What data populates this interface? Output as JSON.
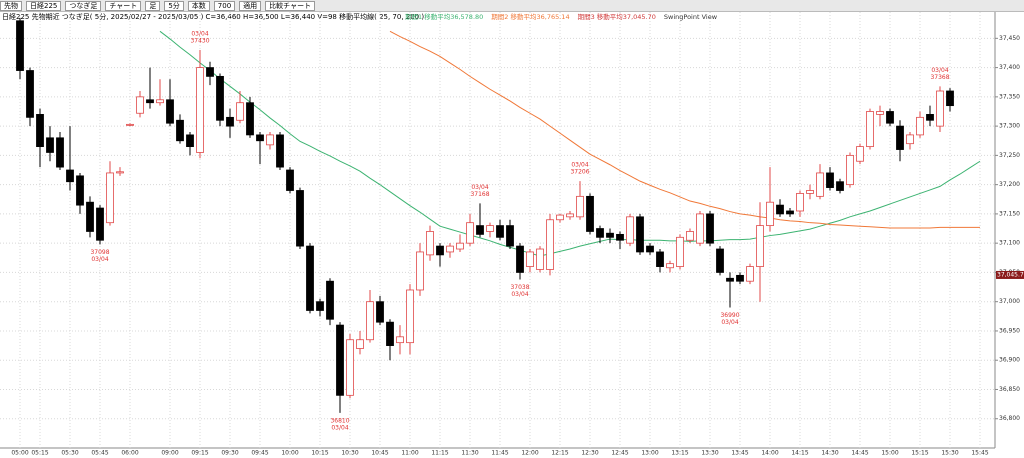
{
  "toolbar": [
    "先物",
    "日経225",
    "つなぎ足",
    "チャート",
    "足",
    "5分",
    "本数",
    "700",
    "適用",
    "比較チャート"
  ],
  "chart_data": {
    "type": "candlestick",
    "subtitle": "日経225 先物期近 つなぎ足( 5分, 2025/02/27 - 2025/03/05 ) C=36,460 H=36,500 L=36,440 V=98 移動平均線( 25, 70, 200 )",
    "indicator": "SwingPoint View",
    "categories": [
      "05:00",
      null,
      "05:15",
      null,
      null,
      "05:30",
      null,
      null,
      "05:45",
      null,
      null,
      "06:00",
      null,
      null,
      null,
      "09:00",
      null,
      null,
      "09:15",
      null,
      null,
      "09:30",
      null,
      null,
      "09:45",
      null,
      null,
      "10:00",
      null,
      null,
      "10:15",
      null,
      null,
      "10:30",
      null,
      null,
      "10:45",
      null,
      null,
      "11:00",
      null,
      null,
      "11:15",
      null,
      null,
      "11:30",
      null,
      null,
      "11:45",
      null,
      null,
      "12:00",
      null,
      null,
      "12:15",
      null,
      null,
      "12:30",
      null,
      null,
      "12:45",
      null,
      null,
      "13:00",
      null,
      null,
      "13:15",
      null,
      null,
      "13:30",
      null,
      null,
      "13:45",
      null,
      null,
      "14:00",
      null,
      null,
      "14:15",
      null,
      null,
      "14:30",
      null,
      null,
      "14:45",
      null,
      null,
      "15:00",
      null,
      null,
      "15:15",
      null,
      null,
      "15:30",
      null,
      null,
      "15:45"
    ],
    "open": [
      37480,
      37395,
      37320,
      37280,
      37280,
      37225,
      37215,
      37170,
      37160,
      37135,
      37220,
      37303,
      37322,
      37345,
      37340,
      37345,
      37310,
      37285,
      37255,
      37400,
      37385,
      37315,
      37310,
      37340,
      37285,
      37268,
      37285,
      37225,
      37190,
      37095,
      37000,
      37035,
      36960,
      36840,
      36920,
      36935,
      37000,
      36965,
      36930,
      36930,
      37020,
      37080,
      37095,
      37085,
      37090,
      37100,
      37130,
      37120,
      37130,
      37130,
      37095,
      37060,
      37055,
      37055,
      37140,
      37145,
      37145,
      37180,
      37125,
      37117,
      37115,
      37100,
      37145,
      37095,
      37085,
      37058,
      37060,
      37105,
      37100,
      37150,
      37090,
      37040,
      37045,
      37035,
      37060,
      37130,
      37165,
      37155,
      37155,
      37185,
      37180,
      37220,
      37205,
      37200,
      37240,
      37265,
      37320,
      37325,
      37300,
      37270,
      37285,
      37320,
      37300,
      37360,
      null,
      null,
      null
    ],
    "high": [
      37485,
      37400,
      37330,
      37300,
      37290,
      37300,
      37220,
      37180,
      37165,
      37240,
      37230,
      37305,
      37360,
      37400,
      37380,
      37380,
      37320,
      37290,
      37430,
      37410,
      37390,
      37330,
      37360,
      37350,
      37290,
      37290,
      37290,
      37230,
      37195,
      37100,
      37005,
      37040,
      36965,
      36945,
      36950,
      37020,
      37010,
      36970,
      36960,
      37030,
      37100,
      37130,
      37100,
      37100,
      37115,
      37150,
      37168,
      37135,
      37140,
      37140,
      37100,
      37090,
      37095,
      37150,
      37150,
      37155,
      37206,
      37185,
      37130,
      37125,
      37120,
      37150,
      37150,
      37100,
      37090,
      37070,
      37115,
      37125,
      37155,
      37155,
      37095,
      37050,
      37050,
      37065,
      37170,
      37230,
      37175,
      37160,
      37190,
      37200,
      37235,
      37230,
      37210,
      37255,
      37270,
      37330,
      37335,
      37330,
      37310,
      37290,
      37325,
      37335,
      37368,
      37365,
      null,
      null,
      null
    ],
    "low": [
      37380,
      37300,
      37230,
      37240,
      37225,
      37190,
      37150,
      37110,
      37098,
      37130,
      37215,
      37300,
      37315,
      37330,
      37335,
      37300,
      37270,
      37250,
      37245,
      37370,
      37300,
      37280,
      37305,
      37280,
      37235,
      37260,
      37225,
      37185,
      37090,
      36980,
      36975,
      36960,
      36810,
      36835,
      36910,
      36930,
      36960,
      36900,
      36910,
      36910,
      37010,
      37070,
      37060,
      37075,
      37085,
      37095,
      37110,
      37110,
      37105,
      37090,
      37038,
      37050,
      37050,
      37045,
      37135,
      37140,
      37140,
      37115,
      37100,
      37100,
      37090,
      37095,
      37080,
      37080,
      37050,
      37050,
      37055,
      37100,
      37095,
      37095,
      37045,
      36990,
      37030,
      37030,
      37000,
      37120,
      37145,
      37145,
      37145,
      37175,
      37175,
      37190,
      37185,
      37195,
      37235,
      37260,
      37300,
      37300,
      37240,
      37260,
      37280,
      37300,
      37290,
      37325,
      null,
      null,
      null
    ],
    "close": [
      37395,
      37315,
      37265,
      37255,
      37230,
      37205,
      37165,
      37120,
      37105,
      37220,
      37222,
      37303,
      37350,
      37340,
      37345,
      37305,
      37275,
      37265,
      37400,
      37385,
      37310,
      37300,
      37340,
      37285,
      37275,
      37285,
      37230,
      37190,
      37095,
      36985,
      36985,
      36970,
      36840,
      36935,
      36935,
      37000,
      36965,
      36925,
      36940,
      37020,
      37085,
      37120,
      37080,
      37095,
      37100,
      37135,
      37115,
      37130,
      37110,
      37095,
      37050,
      37085,
      37090,
      37140,
      37148,
      37150,
      37180,
      37120,
      37110,
      37110,
      37105,
      37145,
      37085,
      37085,
      37060,
      37065,
      37110,
      37120,
      37150,
      37100,
      37050,
      37035,
      37035,
      37060,
      37130,
      37170,
      37150,
      37150,
      37185,
      37190,
      37220,
      37195,
      37190,
      37250,
      37265,
      37325,
      37325,
      37305,
      37260,
      37285,
      37315,
      37310,
      37360,
      37335,
      null,
      null,
      null
    ],
    "up_color": "#e04848",
    "down_color": "#000000",
    "series": [
      {
        "name": "期間1 移動平均36,578.80",
        "color": "#3cb371",
        "values": [
          null,
          null,
          null,
          null,
          null,
          null,
          null,
          null,
          null,
          null,
          null,
          null,
          null,
          null,
          37462,
          37449,
          37435,
          37422,
          37408,
          37395,
          37381,
          37368,
          37355,
          37341,
          37328,
          37314,
          37301,
          37287,
          37274,
          37266,
          37257,
          37249,
          37240,
          37232,
          37223,
          37211,
          37200,
          37188,
          37176,
          37164,
          37153,
          37141,
          37129,
          37124,
          37119,
          37114,
          37109,
          37104,
          37098,
          37093,
          37088,
          37083,
          37078,
          37082,
          37086,
          37090,
          37095,
          37099,
          37103,
          37107,
          37106,
          37106,
          37105,
          37105,
          37105,
          37104,
          37104,
          37103,
          37104,
          37104,
          37105,
          37106,
          37106,
          37107,
          37110,
          37113,
          37115,
          37118,
          37121,
          37124,
          37129,
          37134,
          37139,
          37145,
          37150,
          37155,
          37161,
          37167,
          37173,
          37179,
          37185,
          37191,
          37197,
          37208,
          37218,
          37229,
          37240
        ]
      },
      {
        "name": "期間2 移動平均36,765.14",
        "color": "#f07838",
        "values": [
          null,
          null,
          null,
          null,
          null,
          null,
          null,
          null,
          null,
          null,
          null,
          null,
          null,
          null,
          null,
          null,
          null,
          null,
          null,
          null,
          null,
          null,
          null,
          null,
          null,
          null,
          null,
          null,
          null,
          null,
          null,
          null,
          null,
          null,
          null,
          null,
          null,
          37462,
          37453,
          37445,
          37436,
          37428,
          37419,
          37408,
          37397,
          37385,
          37374,
          37363,
          37353,
          37343,
          37332,
          37322,
          37312,
          37300,
          37288,
          37276,
          37264,
          37252,
          37243,
          37234,
          37224,
          37215,
          37206,
          37199,
          37192,
          37186,
          37179,
          37172,
          37168,
          37163,
          37159,
          37154,
          37150,
          37148,
          37145,
          37143,
          37140,
          37138,
          37137,
          37135,
          37134,
          37132,
          37131,
          37130,
          37129,
          37128,
          37127,
          37126,
          37126,
          37126,
          37126,
          37126,
          37127,
          37127,
          37127,
          37127,
          37127
        ]
      }
    ],
    "legend_extra": {
      "text": "期間3 移動平均37,045.70",
      "color": "#d03838"
    },
    "annotations": [
      {
        "kind": "low",
        "value": 37098,
        "date": "03/04"
      },
      {
        "kind": "high",
        "value": 37430,
        "date": "03/04"
      },
      {
        "kind": "low",
        "value": 36810,
        "date": "03/04"
      },
      {
        "kind": "high",
        "value": 37168,
        "date": "03/04"
      },
      {
        "kind": "low",
        "value": 37038,
        "date": "03/04"
      },
      {
        "kind": "high",
        "value": 37206,
        "date": "03/04"
      },
      {
        "kind": "low",
        "value": 36990,
        "date": "03/04"
      },
      {
        "kind": "high",
        "value": 37368,
        "date": "03/04"
      }
    ],
    "marker": {
      "value": 37045.7,
      "label": "37,045.70"
    },
    "ylim": [
      36750,
      37495
    ],
    "yticks": [
      {
        "value": 36800,
        "label": "36,800"
      },
      {
        "value": 36850,
        "label": "36,850"
      },
      {
        "value": 36900,
        "label": "36,900"
      },
      {
        "value": 36950,
        "label": "36,950"
      },
      {
        "value": 37000,
        "label": "37,000"
      },
      {
        "value": 37050,
        "label": "37,050"
      },
      {
        "value": 37100,
        "label": "37,100"
      },
      {
        "value": 37150,
        "label": "37,150"
      },
      {
        "value": 37200,
        "label": "37,200"
      },
      {
        "value": 37250,
        "label": "37,250"
      },
      {
        "value": 37300,
        "label": "37,300"
      },
      {
        "value": 37350,
        "label": "37,350"
      },
      {
        "value": 37400,
        "label": "37,400"
      },
      {
        "value": 37450,
        "label": "37,450"
      }
    ],
    "grid": true
  }
}
